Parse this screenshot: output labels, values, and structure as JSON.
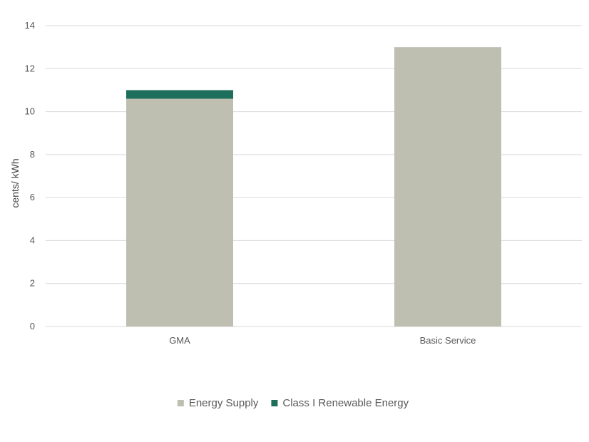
{
  "chart_data": {
    "type": "bar",
    "stacked": true,
    "categories": [
      "GMA",
      "Basic Service"
    ],
    "series": [
      {
        "name": "Energy Supply",
        "values": [
          10.6,
          13.0
        ],
        "color": "#bfbfb1"
      },
      {
        "name": "Class I Renewable Energy",
        "values": [
          0.4,
          0.0
        ],
        "color": "#1e6e5c"
      }
    ],
    "ylabel": "cents/ kWh",
    "ylim": [
      0,
      14
    ],
    "yticks": [
      0,
      2,
      4,
      6,
      8,
      10,
      12,
      14
    ],
    "grid": true,
    "legend_position": "bottom"
  }
}
